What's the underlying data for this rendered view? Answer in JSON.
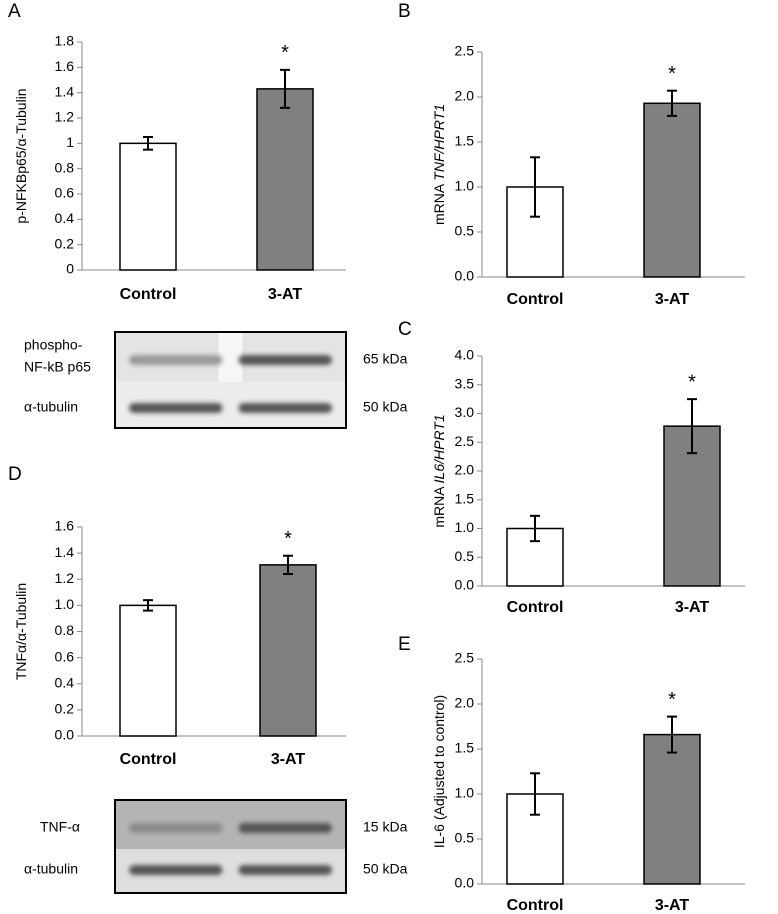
{
  "chart_data": [
    {
      "panel": "A",
      "type": "bar",
      "ylabel": {
        "text": "p-NFKBp65/α-Tubulin"
      },
      "categories": [
        "Control",
        "3-AT"
      ],
      "values": [
        1.0,
        1.43
      ],
      "errors": [
        0.05,
        0.15
      ],
      "significance": [
        null,
        "*"
      ],
      "colors": [
        "#ffffff",
        "#808080"
      ],
      "ylim": [
        0,
        1.8
      ],
      "yticks": [
        0,
        0.2,
        0.4,
        0.6,
        0.8,
        1,
        1.2,
        1.4,
        1.6,
        1.8
      ],
      "blot": {
        "rows": [
          {
            "label": [
              "phospho-",
              "NF-kB p65"
            ],
            "size": "65 kDa"
          },
          {
            "label": [
              "α-tubulin"
            ],
            "size": "50 kDa"
          }
        ]
      }
    },
    {
      "panel": "B",
      "type": "bar",
      "ylabel": {
        "text": "mRNA",
        "italic": "TNF/HPRT1"
      },
      "categories": [
        "Control",
        "3-AT"
      ],
      "values": [
        1.0,
        1.93
      ],
      "errors": [
        0.33,
        0.14
      ],
      "significance": [
        null,
        "*"
      ],
      "colors": [
        "#ffffff",
        "#808080"
      ],
      "ylim": [
        0,
        2.5
      ],
      "yticks": [
        {
          "value": 0,
          "label": "0.0"
        },
        {
          "value": 0.5,
          "label": "0.5"
        },
        {
          "value": 1,
          "label": "1.0"
        },
        {
          "value": 1.5,
          "label": "1.5"
        },
        {
          "value": 2,
          "label": "2.0"
        },
        {
          "value": 2.5,
          "label": "2.5"
        }
      ]
    },
    {
      "panel": "C",
      "type": "bar",
      "ylabel": {
        "text": "mRNA",
        "italic": "IL6/HPRT1"
      },
      "categories": [
        "Control",
        "3-AT"
      ],
      "values": [
        1.0,
        2.78
      ],
      "errors": [
        0.22,
        0.47
      ],
      "significance": [
        null,
        "*"
      ],
      "colors": [
        "#ffffff",
        "#808080"
      ],
      "ylim": [
        0,
        4
      ],
      "yticks": [
        {
          "value": 0,
          "label": "0.0"
        },
        {
          "value": 0.5,
          "label": "0.5"
        },
        {
          "value": 1,
          "label": "1.0"
        },
        {
          "value": 1.5,
          "label": "1.5"
        },
        {
          "value": 2,
          "label": "2.0"
        },
        {
          "value": 2.5,
          "label": "2.5"
        },
        {
          "value": 3,
          "label": "3.0"
        },
        {
          "value": 3.5,
          "label": "3.5"
        },
        {
          "value": 4,
          "label": "4.0"
        }
      ]
    },
    {
      "panel": "D",
      "type": "bar",
      "ylabel": {
        "text": "TNFα/α-Tubulin"
      },
      "categories": [
        "Control",
        "3-AT"
      ],
      "values": [
        1.0,
        1.31
      ],
      "errors": [
        0.04,
        0.07
      ],
      "significance": [
        null,
        "*"
      ],
      "colors": [
        "#ffffff",
        "#808080"
      ],
      "ylim": [
        0,
        1.6
      ],
      "yticks": [
        {
          "value": 0,
          "label": "0.0"
        },
        {
          "value": 0.2,
          "label": "0.2"
        },
        {
          "value": 0.4,
          "label": "0.4"
        },
        {
          "value": 0.6,
          "label": "0.6"
        },
        {
          "value": 0.8,
          "label": "0.8"
        },
        {
          "value": 1,
          "label": "1.0"
        },
        {
          "value": 1.2,
          "label": "1.2"
        },
        {
          "value": 1.4,
          "label": "1.4"
        },
        {
          "value": 1.6,
          "label": "1.6"
        }
      ],
      "blot": {
        "rows": [
          {
            "label": [
              "TNF-α"
            ],
            "size": "15 kDa"
          },
          {
            "label": [
              "α-tubulin"
            ],
            "size": "50 kDa"
          }
        ]
      }
    },
    {
      "panel": "E",
      "type": "bar",
      "ylabel": {
        "text": "IL-6 (Adjusted to control)"
      },
      "categories": [
        "Control",
        "3-AT"
      ],
      "values": [
        1.0,
        1.66
      ],
      "errors": [
        0.23,
        0.2
      ],
      "significance": [
        null,
        "*"
      ],
      "colors": [
        "#ffffff",
        "#808080"
      ],
      "ylim": [
        0,
        2.5
      ],
      "yticks": [
        {
          "value": 0,
          "label": "0.0"
        },
        {
          "value": 0.5,
          "label": "0.5"
        },
        {
          "value": 1,
          "label": "1.0"
        },
        {
          "value": 1.5,
          "label": "1.5"
        },
        {
          "value": 2,
          "label": "2.0"
        },
        {
          "value": 2.5,
          "label": "2.5"
        }
      ]
    }
  ]
}
